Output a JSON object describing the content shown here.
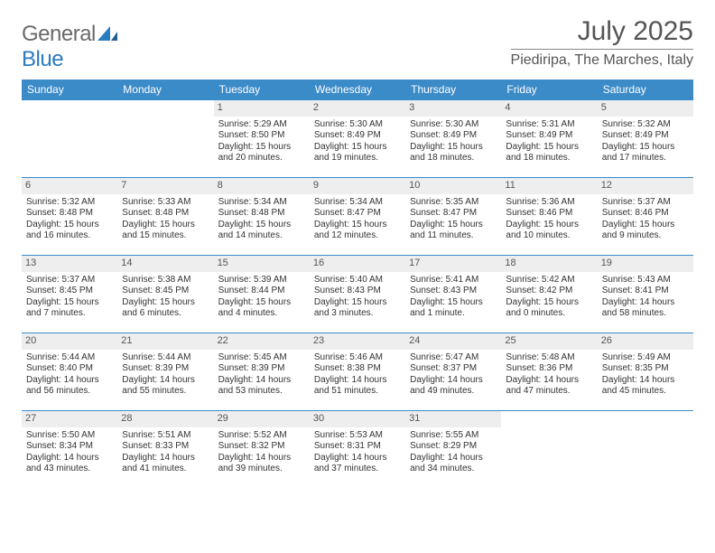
{
  "brand": {
    "name_gray": "General",
    "name_blue": "Blue"
  },
  "title": "July 2025",
  "location": "Piediripa, The Marches, Italy",
  "colors": {
    "header_bg": "#3b8bc9",
    "header_text": "#ffffff",
    "daynum_bg": "#eeeeee",
    "rule": "#3b8bc9",
    "body_text": "#333333",
    "title_text": "#555555"
  },
  "typography": {
    "title_fontsize": 30,
    "location_fontsize": 16,
    "dayheader_fontsize": 12,
    "daynum_fontsize": 11,
    "body_fontsize": 10
  },
  "day_headers": [
    "Sunday",
    "Monday",
    "Tuesday",
    "Wednesday",
    "Thursday",
    "Friday",
    "Saturday"
  ],
  "weeks": [
    [
      null,
      null,
      {
        "n": "1",
        "sr": "Sunrise: 5:29 AM",
        "ss": "Sunset: 8:50 PM",
        "dl": "Daylight: 15 hours and 20 minutes."
      },
      {
        "n": "2",
        "sr": "Sunrise: 5:30 AM",
        "ss": "Sunset: 8:49 PM",
        "dl": "Daylight: 15 hours and 19 minutes."
      },
      {
        "n": "3",
        "sr": "Sunrise: 5:30 AM",
        "ss": "Sunset: 8:49 PM",
        "dl": "Daylight: 15 hours and 18 minutes."
      },
      {
        "n": "4",
        "sr": "Sunrise: 5:31 AM",
        "ss": "Sunset: 8:49 PM",
        "dl": "Daylight: 15 hours and 18 minutes."
      },
      {
        "n": "5",
        "sr": "Sunrise: 5:32 AM",
        "ss": "Sunset: 8:49 PM",
        "dl": "Daylight: 15 hours and 17 minutes."
      }
    ],
    [
      {
        "n": "6",
        "sr": "Sunrise: 5:32 AM",
        "ss": "Sunset: 8:48 PM",
        "dl": "Daylight: 15 hours and 16 minutes."
      },
      {
        "n": "7",
        "sr": "Sunrise: 5:33 AM",
        "ss": "Sunset: 8:48 PM",
        "dl": "Daylight: 15 hours and 15 minutes."
      },
      {
        "n": "8",
        "sr": "Sunrise: 5:34 AM",
        "ss": "Sunset: 8:48 PM",
        "dl": "Daylight: 15 hours and 14 minutes."
      },
      {
        "n": "9",
        "sr": "Sunrise: 5:34 AM",
        "ss": "Sunset: 8:47 PM",
        "dl": "Daylight: 15 hours and 12 minutes."
      },
      {
        "n": "10",
        "sr": "Sunrise: 5:35 AM",
        "ss": "Sunset: 8:47 PM",
        "dl": "Daylight: 15 hours and 11 minutes."
      },
      {
        "n": "11",
        "sr": "Sunrise: 5:36 AM",
        "ss": "Sunset: 8:46 PM",
        "dl": "Daylight: 15 hours and 10 minutes."
      },
      {
        "n": "12",
        "sr": "Sunrise: 5:37 AM",
        "ss": "Sunset: 8:46 PM",
        "dl": "Daylight: 15 hours and 9 minutes."
      }
    ],
    [
      {
        "n": "13",
        "sr": "Sunrise: 5:37 AM",
        "ss": "Sunset: 8:45 PM",
        "dl": "Daylight: 15 hours and 7 minutes."
      },
      {
        "n": "14",
        "sr": "Sunrise: 5:38 AM",
        "ss": "Sunset: 8:45 PM",
        "dl": "Daylight: 15 hours and 6 minutes."
      },
      {
        "n": "15",
        "sr": "Sunrise: 5:39 AM",
        "ss": "Sunset: 8:44 PM",
        "dl": "Daylight: 15 hours and 4 minutes."
      },
      {
        "n": "16",
        "sr": "Sunrise: 5:40 AM",
        "ss": "Sunset: 8:43 PM",
        "dl": "Daylight: 15 hours and 3 minutes."
      },
      {
        "n": "17",
        "sr": "Sunrise: 5:41 AM",
        "ss": "Sunset: 8:43 PM",
        "dl": "Daylight: 15 hours and 1 minute."
      },
      {
        "n": "18",
        "sr": "Sunrise: 5:42 AM",
        "ss": "Sunset: 8:42 PM",
        "dl": "Daylight: 15 hours and 0 minutes."
      },
      {
        "n": "19",
        "sr": "Sunrise: 5:43 AM",
        "ss": "Sunset: 8:41 PM",
        "dl": "Daylight: 14 hours and 58 minutes."
      }
    ],
    [
      {
        "n": "20",
        "sr": "Sunrise: 5:44 AM",
        "ss": "Sunset: 8:40 PM",
        "dl": "Daylight: 14 hours and 56 minutes."
      },
      {
        "n": "21",
        "sr": "Sunrise: 5:44 AM",
        "ss": "Sunset: 8:39 PM",
        "dl": "Daylight: 14 hours and 55 minutes."
      },
      {
        "n": "22",
        "sr": "Sunrise: 5:45 AM",
        "ss": "Sunset: 8:39 PM",
        "dl": "Daylight: 14 hours and 53 minutes."
      },
      {
        "n": "23",
        "sr": "Sunrise: 5:46 AM",
        "ss": "Sunset: 8:38 PM",
        "dl": "Daylight: 14 hours and 51 minutes."
      },
      {
        "n": "24",
        "sr": "Sunrise: 5:47 AM",
        "ss": "Sunset: 8:37 PM",
        "dl": "Daylight: 14 hours and 49 minutes."
      },
      {
        "n": "25",
        "sr": "Sunrise: 5:48 AM",
        "ss": "Sunset: 8:36 PM",
        "dl": "Daylight: 14 hours and 47 minutes."
      },
      {
        "n": "26",
        "sr": "Sunrise: 5:49 AM",
        "ss": "Sunset: 8:35 PM",
        "dl": "Daylight: 14 hours and 45 minutes."
      }
    ],
    [
      {
        "n": "27",
        "sr": "Sunrise: 5:50 AM",
        "ss": "Sunset: 8:34 PM",
        "dl": "Daylight: 14 hours and 43 minutes."
      },
      {
        "n": "28",
        "sr": "Sunrise: 5:51 AM",
        "ss": "Sunset: 8:33 PM",
        "dl": "Daylight: 14 hours and 41 minutes."
      },
      {
        "n": "29",
        "sr": "Sunrise: 5:52 AM",
        "ss": "Sunset: 8:32 PM",
        "dl": "Daylight: 14 hours and 39 minutes."
      },
      {
        "n": "30",
        "sr": "Sunrise: 5:53 AM",
        "ss": "Sunset: 8:31 PM",
        "dl": "Daylight: 14 hours and 37 minutes."
      },
      {
        "n": "31",
        "sr": "Sunrise: 5:55 AM",
        "ss": "Sunset: 8:29 PM",
        "dl": "Daylight: 14 hours and 34 minutes."
      },
      null,
      null
    ]
  ]
}
